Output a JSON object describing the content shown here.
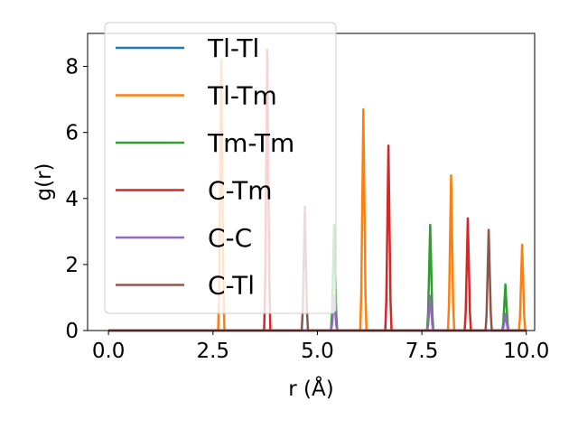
{
  "chart_data": {
    "type": "line",
    "title": "",
    "xlabel": "r (Å)",
    "ylabel": "g(r)",
    "xlim": [
      -0.5,
      10.2
    ],
    "ylim": [
      0,
      9.0
    ],
    "xticks": [
      "0.0",
      "2.5",
      "5.0",
      "7.5",
      "10.0"
    ],
    "yticks": [
      "0",
      "2",
      "4",
      "6",
      "8"
    ],
    "grid": false,
    "legend_position": "upper-left",
    "series": [
      {
        "name": "Tl-Tl",
        "color": "#1f77b4",
        "peaks": []
      },
      {
        "name": "Tl-Tm",
        "color": "#ff7f0e",
        "peaks": [
          [
            2.7,
            8.2
          ],
          [
            6.1,
            6.7
          ],
          [
            8.2,
            4.7
          ],
          [
            9.9,
            2.6
          ]
        ]
      },
      {
        "name": "Tm-Tm",
        "color": "#2ca02c",
        "peaks": [
          [
            5.4,
            3.2
          ],
          [
            7.7,
            3.2
          ],
          [
            9.5,
            1.4
          ]
        ]
      },
      {
        "name": "C-Tm",
        "color": "#d62728",
        "peaks": [
          [
            3.8,
            8.5
          ],
          [
            6.7,
            5.6
          ],
          [
            8.6,
            3.4
          ]
        ]
      },
      {
        "name": "C-C",
        "color": "#9467bd",
        "peaks": [
          [
            5.4,
            1.05
          ],
          [
            7.7,
            1.05
          ],
          [
            9.5,
            0.5
          ]
        ]
      },
      {
        "name": "C-Tl",
        "color": "#8c564b",
        "peaks": [
          [
            4.7,
            3.75
          ],
          [
            9.1,
            3.05
          ]
        ]
      }
    ]
  }
}
